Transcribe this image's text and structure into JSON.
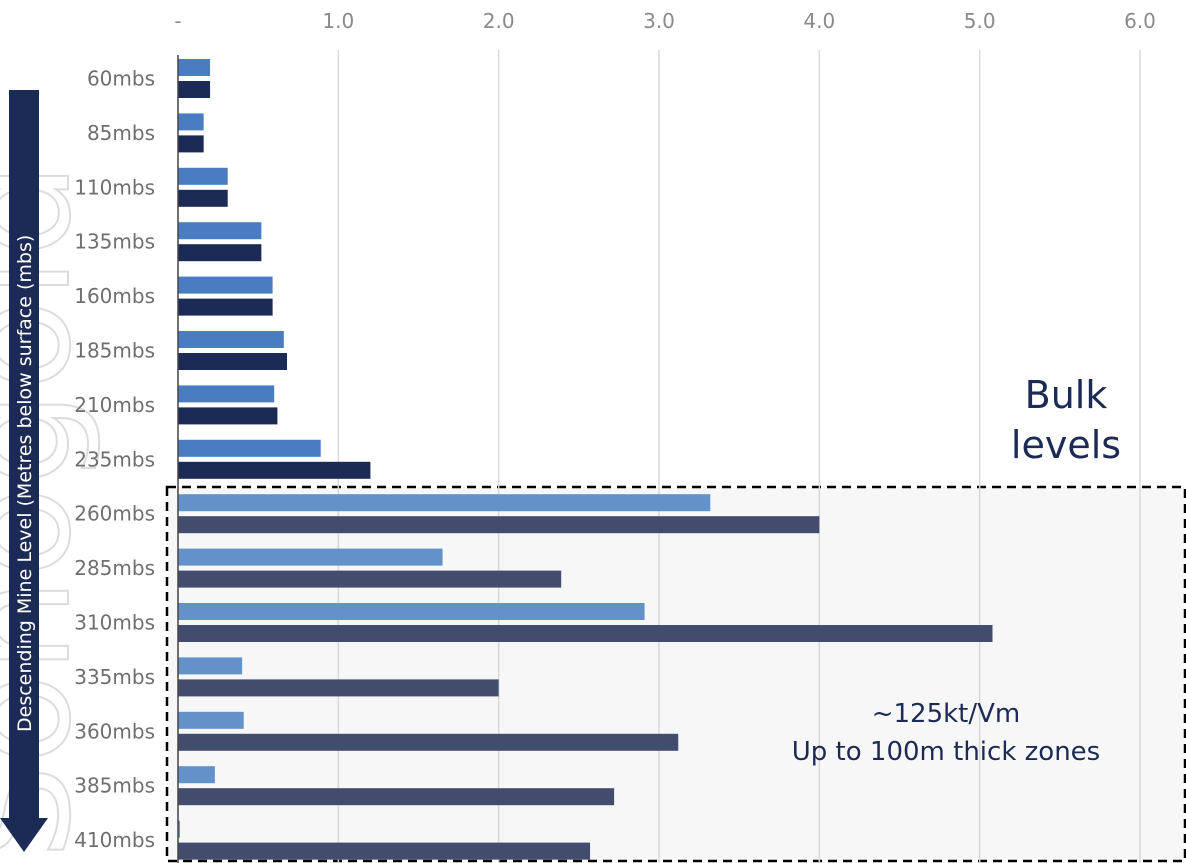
{
  "chart_data": {
    "type": "bar",
    "orientation": "horizontal",
    "x_tick_labels": [
      "-",
      "1.0",
      "2.0",
      "3.0",
      "4.0",
      "5.0",
      "6.0"
    ],
    "xlim": [
      0,
      6
    ],
    "grid": true,
    "ylabel": "Descending Mine Level (Metres below surface (mbs)",
    "categories": [
      "60mbs",
      "85mbs",
      "110mbs",
      "135mbs",
      "160mbs",
      "185mbs",
      "210mbs",
      "235mbs",
      "260mbs",
      "285mbs",
      "310mbs",
      "335mbs",
      "360mbs",
      "385mbs",
      "410mbs"
    ],
    "series": [
      {
        "values": [
          0.2,
          0.16,
          0.31,
          0.52,
          0.59,
          0.66,
          0.6,
          0.89,
          3.32,
          1.65,
          2.91,
          0.4,
          0.41,
          0.23,
          0.01
        ]
      },
      {
        "values": [
          0.2,
          0.16,
          0.31,
          0.52,
          0.59,
          0.68,
          0.62,
          1.2,
          4.0,
          2.39,
          5.08,
          2.0,
          3.12,
          2.72,
          2.57
        ]
      }
    ],
    "colors": {
      "series1_bulk": "#4a7cc2",
      "series2_bulk": "#1c2b55",
      "series1_zone": "#6391c9",
      "series2_zone": "#424d6d",
      "zone_fill": "#f7f7f7",
      "axis_arrow": "#1c2b55"
    },
    "annotations": {
      "bulk_label_line1": "Bulk",
      "bulk_label_line2": "levels",
      "zone_note_line1": "~125kt/Vm",
      "zone_note_line2": "Up to 100m thick zones"
    },
    "zone_from_category": "260mbs"
  }
}
